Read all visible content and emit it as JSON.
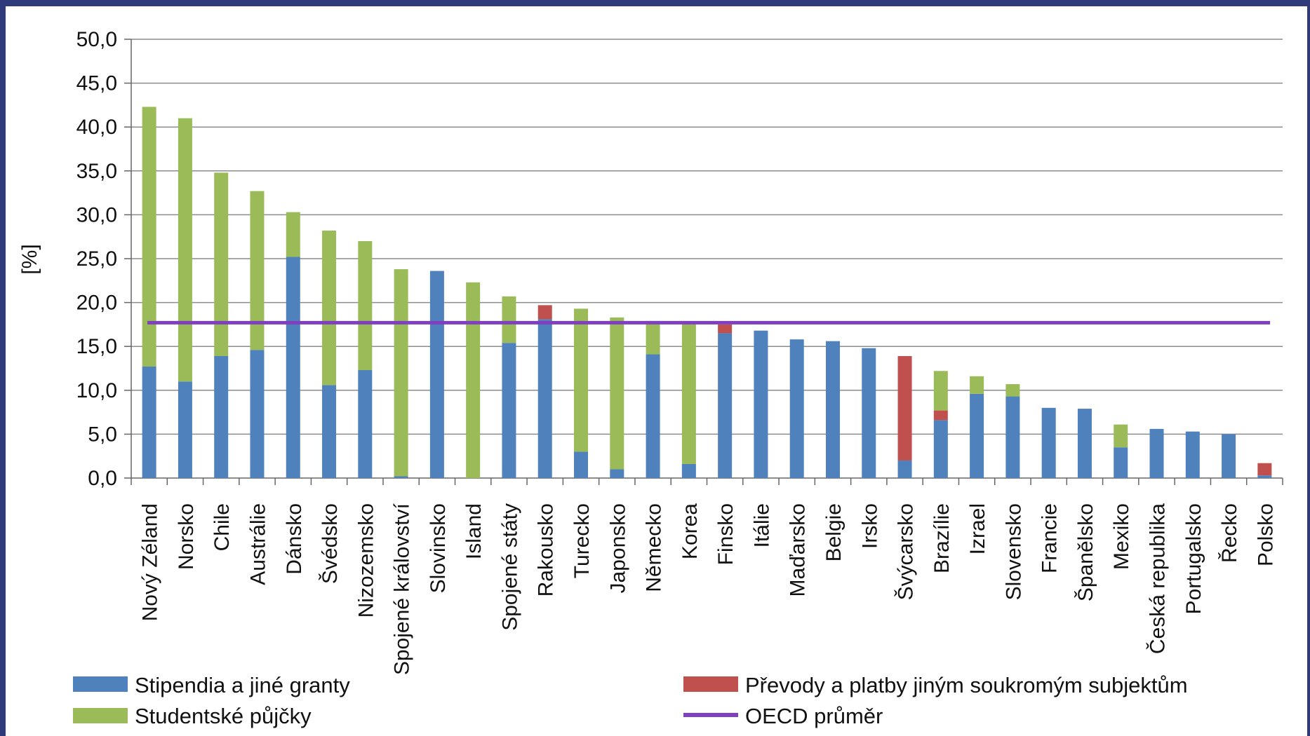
{
  "chart_data": {
    "type": "bar",
    "stacked": true,
    "ylabel": "[%]",
    "ylim": [
      0,
      50
    ],
    "ytick_step": 5,
    "ytick_labels": [
      "0,0",
      "5,0",
      "10,0",
      "15,0",
      "20,0",
      "25,0",
      "30,0",
      "35,0",
      "40,0",
      "45,0",
      "50,0"
    ],
    "grid": true,
    "categories": [
      "Nový Zéland",
      "Norsko",
      "Chile",
      "Austrálie",
      "Dánsko",
      "Švédsko",
      "Nizozemsko",
      "Spojené království",
      "Slovinsko",
      "Island",
      "Spojené státy",
      "Rakousko",
      "Turecko",
      "Japonsko",
      "Německo",
      "Korea",
      "Finsko",
      "Itálie",
      "Maďarsko",
      "Belgie",
      "Irsko",
      "Švýcarsko",
      "Brazílie",
      "Izrael",
      "Slovensko",
      "Francie",
      "Španělsko",
      "Mexiko",
      "Česká republika",
      "Portugalsko",
      "Řecko",
      "Polsko"
    ],
    "series": [
      {
        "name": "Stipendia a jiné granty",
        "color": "#4f81bd",
        "values": [
          12.7,
          11.0,
          13.9,
          14.6,
          25.2,
          10.6,
          12.3,
          0.2,
          23.6,
          0.0,
          15.4,
          18.1,
          3.0,
          1.0,
          14.1,
          1.6,
          16.5,
          16.8,
          15.8,
          15.6,
          14.8,
          2.0,
          6.6,
          9.6,
          9.3,
          8.0,
          7.9,
          3.5,
          5.6,
          5.3,
          5.0,
          0.3
        ]
      },
      {
        "name": "Převody a platby jiným soukromým subjektům",
        "color": "#c0504d",
        "values": [
          0,
          0,
          0,
          0,
          0,
          0,
          0,
          0,
          0,
          0,
          0,
          1.6,
          0,
          0,
          0,
          0,
          1.0,
          0,
          0,
          0,
          0,
          11.9,
          1.1,
          0,
          0,
          0,
          0,
          0,
          0,
          0,
          0,
          1.4
        ]
      },
      {
        "name": "Studentské půjčky",
        "color": "#9bbb59",
        "values": [
          29.6,
          30.0,
          20.9,
          18.1,
          5.1,
          17.6,
          14.7,
          23.6,
          0.0,
          22.3,
          5.3,
          0.0,
          16.3,
          17.3,
          3.8,
          16.0,
          0.0,
          0.0,
          0.0,
          0.0,
          0.0,
          0.0,
          4.5,
          2.0,
          1.4,
          0.0,
          0.0,
          2.6,
          0.0,
          0.0,
          0.0,
          0.0
        ]
      }
    ],
    "reference_line": {
      "name": "OECD průměr",
      "value": 17.7,
      "color": "#7f3fbf"
    },
    "legend": {
      "placement": "bottom",
      "entries": [
        {
          "label": "Stipendia a jiné granty",
          "color": "#4f81bd",
          "kind": "bar"
        },
        {
          "label": "Studentské půjčky",
          "color": "#9bbb59",
          "kind": "bar"
        },
        {
          "label": "Převody a platby jiným soukromým subjektům",
          "color": "#c0504d",
          "kind": "bar"
        },
        {
          "label": "OECD průměr",
          "color": "#7f3fbf",
          "kind": "line"
        }
      ]
    }
  }
}
